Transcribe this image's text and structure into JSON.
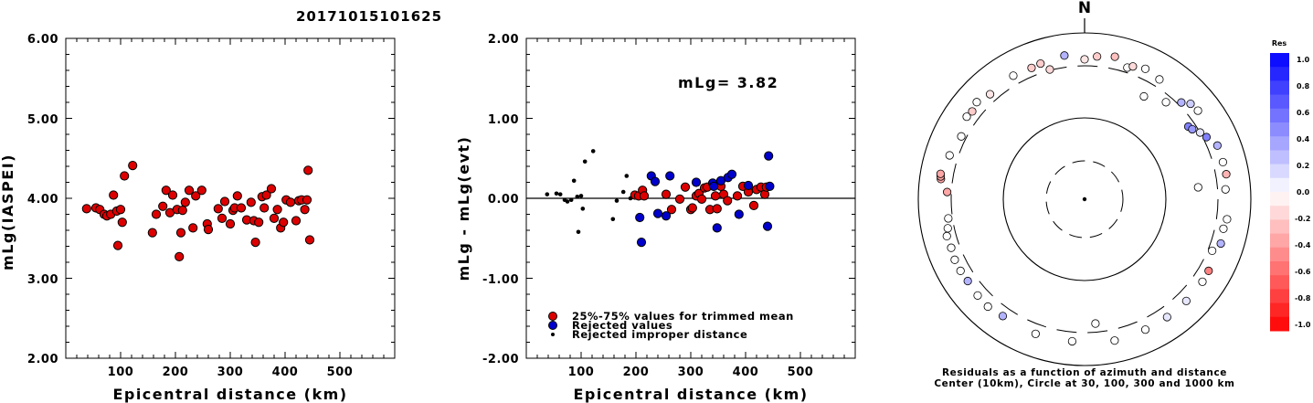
{
  "title": "20171015101625",
  "chart_data": [
    {
      "type": "scatter",
      "xlabel": "Epicentral distance (km)",
      "ylabel": "mLg(IASPEI)",
      "xlim": [
        0,
        600
      ],
      "ylim": [
        2.0,
        6.0
      ],
      "xticks": [
        "100",
        "200",
        "300",
        "400",
        "500"
      ],
      "yticks": [
        "2.00",
        "3.00",
        "4.00",
        "5.00",
        "6.00"
      ],
      "series": [
        {
          "color": "#dd0000",
          "points": [
            [
              38,
              3.87
            ],
            [
              55,
              3.88
            ],
            [
              62,
              3.86
            ],
            [
              70,
              3.8
            ],
            [
              75,
              3.78
            ],
            [
              82,
              3.8
            ],
            [
              87,
              4.04
            ],
            [
              93,
              3.84
            ],
            [
              95,
              3.41
            ],
            [
              100,
              3.86
            ],
            [
              103,
              3.7
            ],
            [
              107,
              4.28
            ],
            [
              122,
              4.41
            ],
            [
              158,
              3.57
            ],
            [
              165,
              3.8
            ],
            [
              177,
              3.9
            ],
            [
              183,
              4.1
            ],
            [
              190,
              3.82
            ],
            [
              195,
              4.04
            ],
            [
              203,
              3.86
            ],
            [
              207,
              3.27
            ],
            [
              210,
              3.57
            ],
            [
              213,
              3.85
            ],
            [
              218,
              3.95
            ],
            [
              225,
              4.1
            ],
            [
              232,
              3.63
            ],
            [
              237,
              4.03
            ],
            [
              248,
              4.1
            ],
            [
              258,
              3.68
            ],
            [
              260,
              3.61
            ],
            [
              278,
              3.87
            ],
            [
              285,
              3.75
            ],
            [
              290,
              3.96
            ],
            [
              300,
              3.68
            ],
            [
              305,
              3.85
            ],
            [
              308,
              3.88
            ],
            [
              313,
              4.03
            ],
            [
              320,
              3.88
            ],
            [
              330,
              3.73
            ],
            [
              338,
              3.95
            ],
            [
              343,
              3.72
            ],
            [
              346,
              3.45
            ],
            [
              352,
              3.7
            ],
            [
              358,
              4.02
            ],
            [
              362,
              3.88
            ],
            [
              366,
              4.04
            ],
            [
              375,
              4.12
            ],
            [
              380,
              3.75
            ],
            [
              386,
              3.86
            ],
            [
              392,
              3.63
            ],
            [
              397,
              3.7
            ],
            [
              402,
              3.98
            ],
            [
              410,
              3.95
            ],
            [
              420,
              3.72
            ],
            [
              425,
              3.97
            ],
            [
              430,
              3.98
            ],
            [
              436,
              3.86
            ],
            [
              440,
              3.98
            ],
            [
              442,
              4.35
            ],
            [
              445,
              3.48
            ]
          ]
        }
      ]
    },
    {
      "type": "scatter",
      "xlabel": "Epicentral distance (km)",
      "ylabel": "mLg - mLg(evt)",
      "xlim": [
        0,
        600
      ],
      "ylim": [
        -2.0,
        2.0
      ],
      "xticks": [
        "100",
        "200",
        "300",
        "400",
        "500"
      ],
      "yticks": [
        "-2.00",
        "-1.00",
        "0.00",
        "1.00",
        "2.00"
      ],
      "annotation": "mLg= 3.82",
      "series": [
        {
          "name": "25%-75% values for trimmed mean",
          "color": "#dd0000",
          "points": [
            [
              198,
              0.04
            ],
            [
              205,
              0.03
            ],
            [
              212,
              0.1
            ],
            [
              215,
              0.03
            ],
            [
              255,
              0.05
            ],
            [
              265,
              -0.14
            ],
            [
              280,
              -0.01
            ],
            [
              290,
              0.14
            ],
            [
              300,
              -0.14
            ],
            [
              303,
              -0.12
            ],
            [
              310,
              0.03
            ],
            [
              315,
              0.06
            ],
            [
              320,
              -0.01
            ],
            [
              325,
              0.13
            ],
            [
              330,
              0.14
            ],
            [
              335,
              -0.14
            ],
            [
              345,
              0.03
            ],
            [
              348,
              -0.13
            ],
            [
              355,
              0.15
            ],
            [
              360,
              0.05
            ],
            [
              367,
              -0.03
            ],
            [
              385,
              0.03
            ],
            [
              395,
              0.15
            ],
            [
              405,
              0.08
            ],
            [
              415,
              -0.09
            ],
            [
              420,
              0.11
            ],
            [
              428,
              0.14
            ],
            [
              435,
              0.05
            ],
            [
              438,
              0.14
            ]
          ]
        },
        {
          "name": "Rejected values",
          "color": "#0000cc",
          "points": [
            [
              207,
              -0.24
            ],
            [
              210,
              -0.55
            ],
            [
              228,
              0.28
            ],
            [
              235,
              0.21
            ],
            [
              240,
              -0.19
            ],
            [
              255,
              -0.22
            ],
            [
              262,
              0.28
            ],
            [
              310,
              0.2
            ],
            [
              340,
              0.19
            ],
            [
              342,
              0.15
            ],
            [
              348,
              -0.37
            ],
            [
              355,
              0.22
            ],
            [
              368,
              0.26
            ],
            [
              375,
              0.3
            ],
            [
              388,
              -0.2
            ],
            [
              405,
              0.16
            ],
            [
              440,
              -0.35
            ],
            [
              442,
              0.53
            ],
            [
              444,
              0.15
            ]
          ]
        },
        {
          "name": "Rejected improper distance",
          "color": "#000000",
          "points": [
            [
              38,
              0.05
            ],
            [
              55,
              0.06
            ],
            [
              62,
              0.05
            ],
            [
              70,
              -0.02
            ],
            [
              75,
              -0.04
            ],
            [
              82,
              -0.02
            ],
            [
              87,
              0.22
            ],
            [
              93,
              0.02
            ],
            [
              95,
              -0.42
            ],
            [
              100,
              0.03
            ],
            [
              103,
              -0.13
            ],
            [
              107,
              0.46
            ],
            [
              122,
              0.59
            ],
            [
              158,
              -0.26
            ],
            [
              165,
              -0.03
            ],
            [
              177,
              0.08
            ],
            [
              183,
              0.28
            ],
            [
              190,
              0.0
            ]
          ]
        }
      ]
    }
  ],
  "polar": {
    "north_label": "N",
    "caption_line1": "Residuals as a function of azimuth and distance",
    "caption_line2": "Center (10km), Circle at 30, 100, 300 and 1000 km",
    "colorbar": {
      "title": "Res",
      "labels": [
        "1.0",
        "0.8",
        "0.6",
        "0.4",
        "0.2",
        "0.0",
        "-0.2",
        "-0.4",
        "-0.6",
        "-0.8",
        "-1.0"
      ]
    },
    "stations": [
      {
        "az": 318,
        "dist": 400,
        "res": -0.1
      },
      {
        "az": 330,
        "dist": 420,
        "res": 0.0
      },
      {
        "az": 338,
        "dist": 405,
        "res": -0.2
      },
      {
        "az": 342,
        "dist": 420,
        "res": -0.2
      },
      {
        "az": 345,
        "dist": 310,
        "res": -0.15
      },
      {
        "az": 352,
        "dist": 460,
        "res": 0.3
      },
      {
        "az": 0,
        "dist": 380,
        "res": -0.1
      },
      {
        "az": 5,
        "dist": 430,
        "res": -0.2
      },
      {
        "az": 12,
        "dist": 470,
        "res": -0.25
      },
      {
        "az": 18,
        "dist": 360,
        "res": 0.0
      },
      {
        "az": 20,
        "dist": 400,
        "res": -0.15
      },
      {
        "az": 25,
        "dist": 440,
        "res": 0.0
      },
      {
        "az": 30,
        "dist": 220,
        "res": 0.0
      },
      {
        "az": 32,
        "dist": 400,
        "res": 0.0
      },
      {
        "az": 40,
        "dist": 260,
        "res": 0.0
      },
      {
        "az": 45,
        "dist": 340,
        "res": 0.3
      },
      {
        "az": 48,
        "dist": 420,
        "res": 0.2
      },
      {
        "az": 52,
        "dist": 440,
        "res": 0.0
      },
      {
        "az": 55,
        "dist": 260,
        "res": 0.5
      },
      {
        "az": 57,
        "dist": 270,
        "res": 0.4
      },
      {
        "az": 60,
        "dist": 300,
        "res": 0.1
      },
      {
        "az": 63,
        "dist": 340,
        "res": 0.5
      },
      {
        "az": 68,
        "dist": 430,
        "res": 0.3
      },
      {
        "az": 75,
        "dist": 430,
        "res": 0.0
      },
      {
        "az": 80,
        "dist": 440,
        "res": -0.3
      },
      {
        "az": 84,
        "dist": 200,
        "res": 0.0
      },
      {
        "az": 86,
        "dist": 400,
        "res": 0.0
      },
      {
        "az": 98,
        "dist": 440,
        "res": 0.0
      },
      {
        "az": 102,
        "dist": 410,
        "res": 0.0
      },
      {
        "az": 108,
        "dist": 430,
        "res": 0.3
      },
      {
        "az": 112,
        "dist": 350,
        "res": 0.0
      },
      {
        "az": 120,
        "dist": 430,
        "res": -0.5
      },
      {
        "az": 125,
        "dist": 440,
        "res": 0.0
      },
      {
        "az": 135,
        "dist": 440,
        "res": 0.1
      },
      {
        "az": 145,
        "dist": 440,
        "res": 0.1
      },
      {
        "az": 155,
        "dist": 440,
        "res": 0.0
      },
      {
        "az": 168,
        "dist": 450,
        "res": 0.0
      },
      {
        "az": 175,
        "dist": 250,
        "res": 0.0
      },
      {
        "az": 185,
        "dist": 420,
        "res": 0.0
      },
      {
        "az": 200,
        "dist": 430,
        "res": 0.0
      },
      {
        "az": 215,
        "dist": 420,
        "res": 0.3
      },
      {
        "az": 222,
        "dist": 450,
        "res": 0.0
      },
      {
        "az": 228,
        "dist": 440,
        "res": 0.0
      },
      {
        "az": 235,
        "dist": 420,
        "res": 0.3
      },
      {
        "az": 240,
        "dist": 430,
        "res": 0.0
      },
      {
        "az": 245,
        "dist": 430,
        "res": 0.0
      },
      {
        "az": 250,
        "dist": 410,
        "res": 0.0
      },
      {
        "az": 255,
        "dist": 420,
        "res": 0.0
      },
      {
        "az": 258,
        "dist": 380,
        "res": 0.0
      },
      {
        "az": 262,
        "dist": 350,
        "res": 0.0
      },
      {
        "az": 273,
        "dist": 350,
        "res": -0.35
      },
      {
        "az": 278,
        "dist": 460,
        "res": -0.35
      },
      {
        "az": 279,
        "dist": 470,
        "res": -0.35
      },
      {
        "az": 280,
        "dist": 480,
        "res": -0.35
      },
      {
        "az": 288,
        "dist": 410,
        "res": 0.0
      },
      {
        "az": 297,
        "dist": 360,
        "res": 0.0
      },
      {
        "az": 305,
        "dist": 440,
        "res": 0.0
      },
      {
        "az": 308,
        "dist": 420,
        "res": -0.2
      },
      {
        "az": 312,
        "dist": 460,
        "res": 0.0
      }
    ]
  }
}
